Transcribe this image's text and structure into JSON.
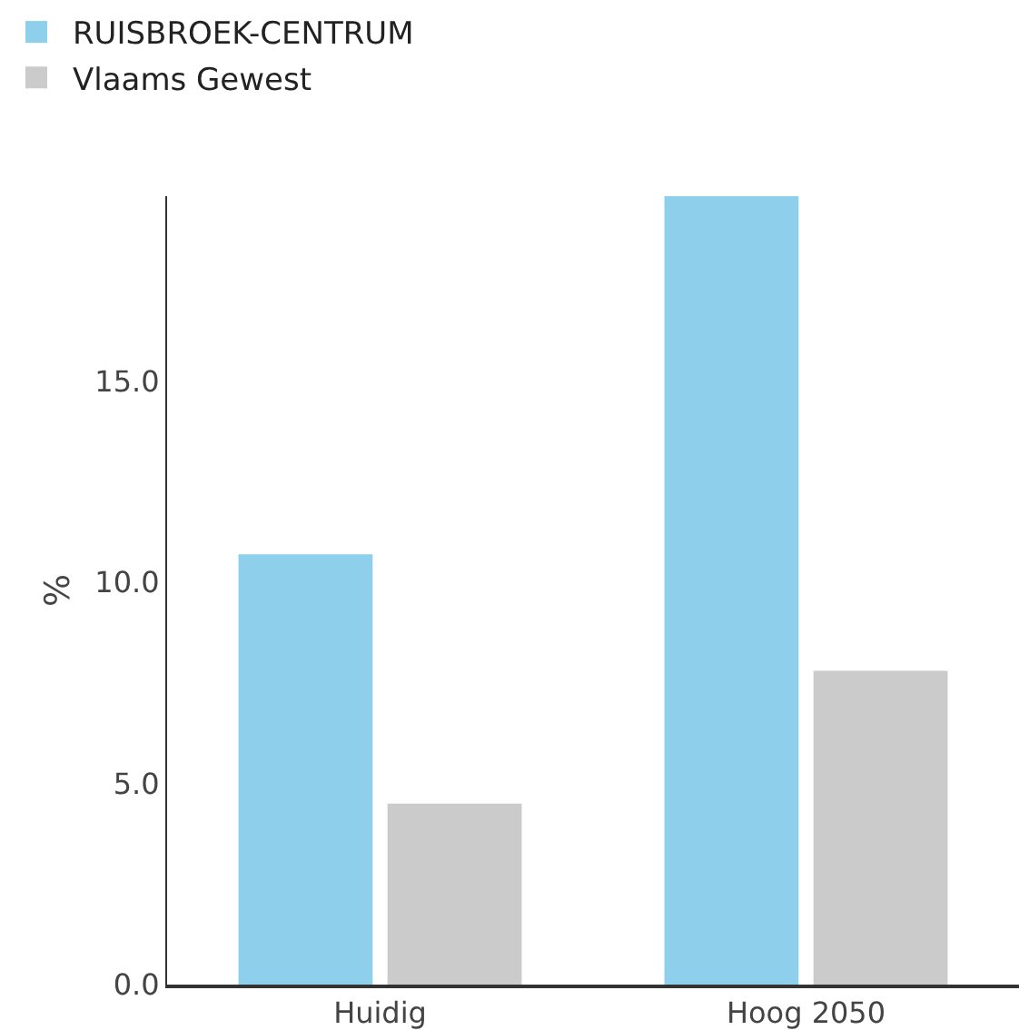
{
  "chart_data": {
    "type": "bar",
    "ylabel": "%",
    "categories": [
      "Huidig",
      "Hoog 2050"
    ],
    "series": [
      {
        "name": "RUISBROEK-CENTRUM",
        "color": "#8ed0ec",
        "values": [
          10.7,
          19.6
        ]
      },
      {
        "name": "Vlaams Gewest",
        "color": "#cbcbcb",
        "values": [
          4.5,
          7.8
        ]
      }
    ],
    "ylim": [
      0,
      19.6
    ],
    "yticks": [
      {
        "value": 0,
        "label": "0.0"
      },
      {
        "value": 5,
        "label": "5.0"
      },
      {
        "value": 10,
        "label": "10.0"
      },
      {
        "value": 15,
        "label": "15.0"
      }
    ],
    "legend": "top left"
  }
}
